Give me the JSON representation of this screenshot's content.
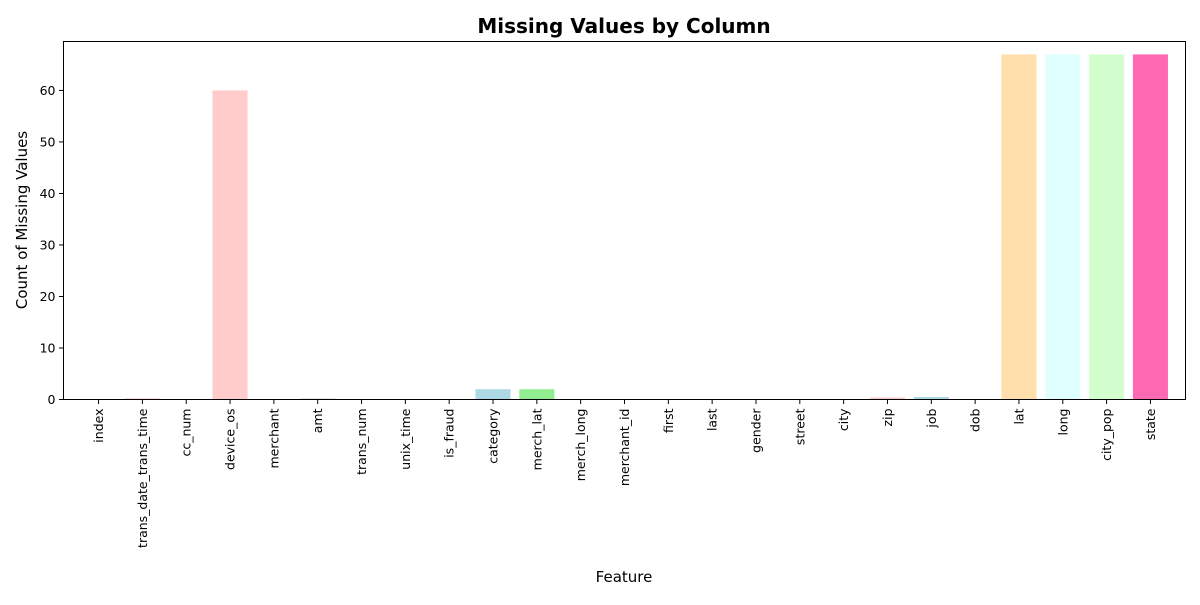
{
  "chart_data": {
    "type": "bar",
    "title": "Missing Values by Column",
    "xlabel": "Feature",
    "ylabel": "Count of Missing Values",
    "ylim": [
      0,
      69.5
    ],
    "yticks": [
      0,
      10,
      20,
      30,
      40,
      50,
      60
    ],
    "grid": false,
    "legend": "none",
    "categories": [
      "index",
      "trans_date_trans_time",
      "cc_num",
      "device_os",
      "merchant",
      "amt",
      "trans_num",
      "unix_time",
      "is_fraud",
      "category",
      "merch_lat",
      "merch_long",
      "merchant_id",
      "first",
      "last",
      "gender",
      "street",
      "city",
      "zip",
      "job",
      "dob",
      "lat",
      "long",
      "city_pop",
      "state"
    ],
    "values": [
      0,
      0.2,
      0,
      60,
      0,
      0.2,
      0,
      0,
      0,
      2,
      2,
      0,
      0,
      0,
      0,
      0,
      0,
      0,
      0.4,
      0.5,
      0,
      67,
      67,
      67,
      67
    ],
    "colors": [
      "#ffb6c1",
      "#ffb6c1",
      "#add8e6",
      "#ffcccb",
      "#90ee90",
      "#d3d3d3",
      "#ffdab9",
      "#e0ffff",
      "#d3ffce",
      "#add8e6",
      "#90ee90",
      "#ffdab9",
      "#e0ffff",
      "#d3ffce",
      "#ff69b4",
      "#ffb6c1",
      "#add8e6",
      "#90ee90",
      "#ffcccb",
      "#add8e6",
      "#d3d3d3",
      "#ffdfab",
      "#e0ffff",
      "#d3ffce",
      "#ff69b4"
    ]
  }
}
